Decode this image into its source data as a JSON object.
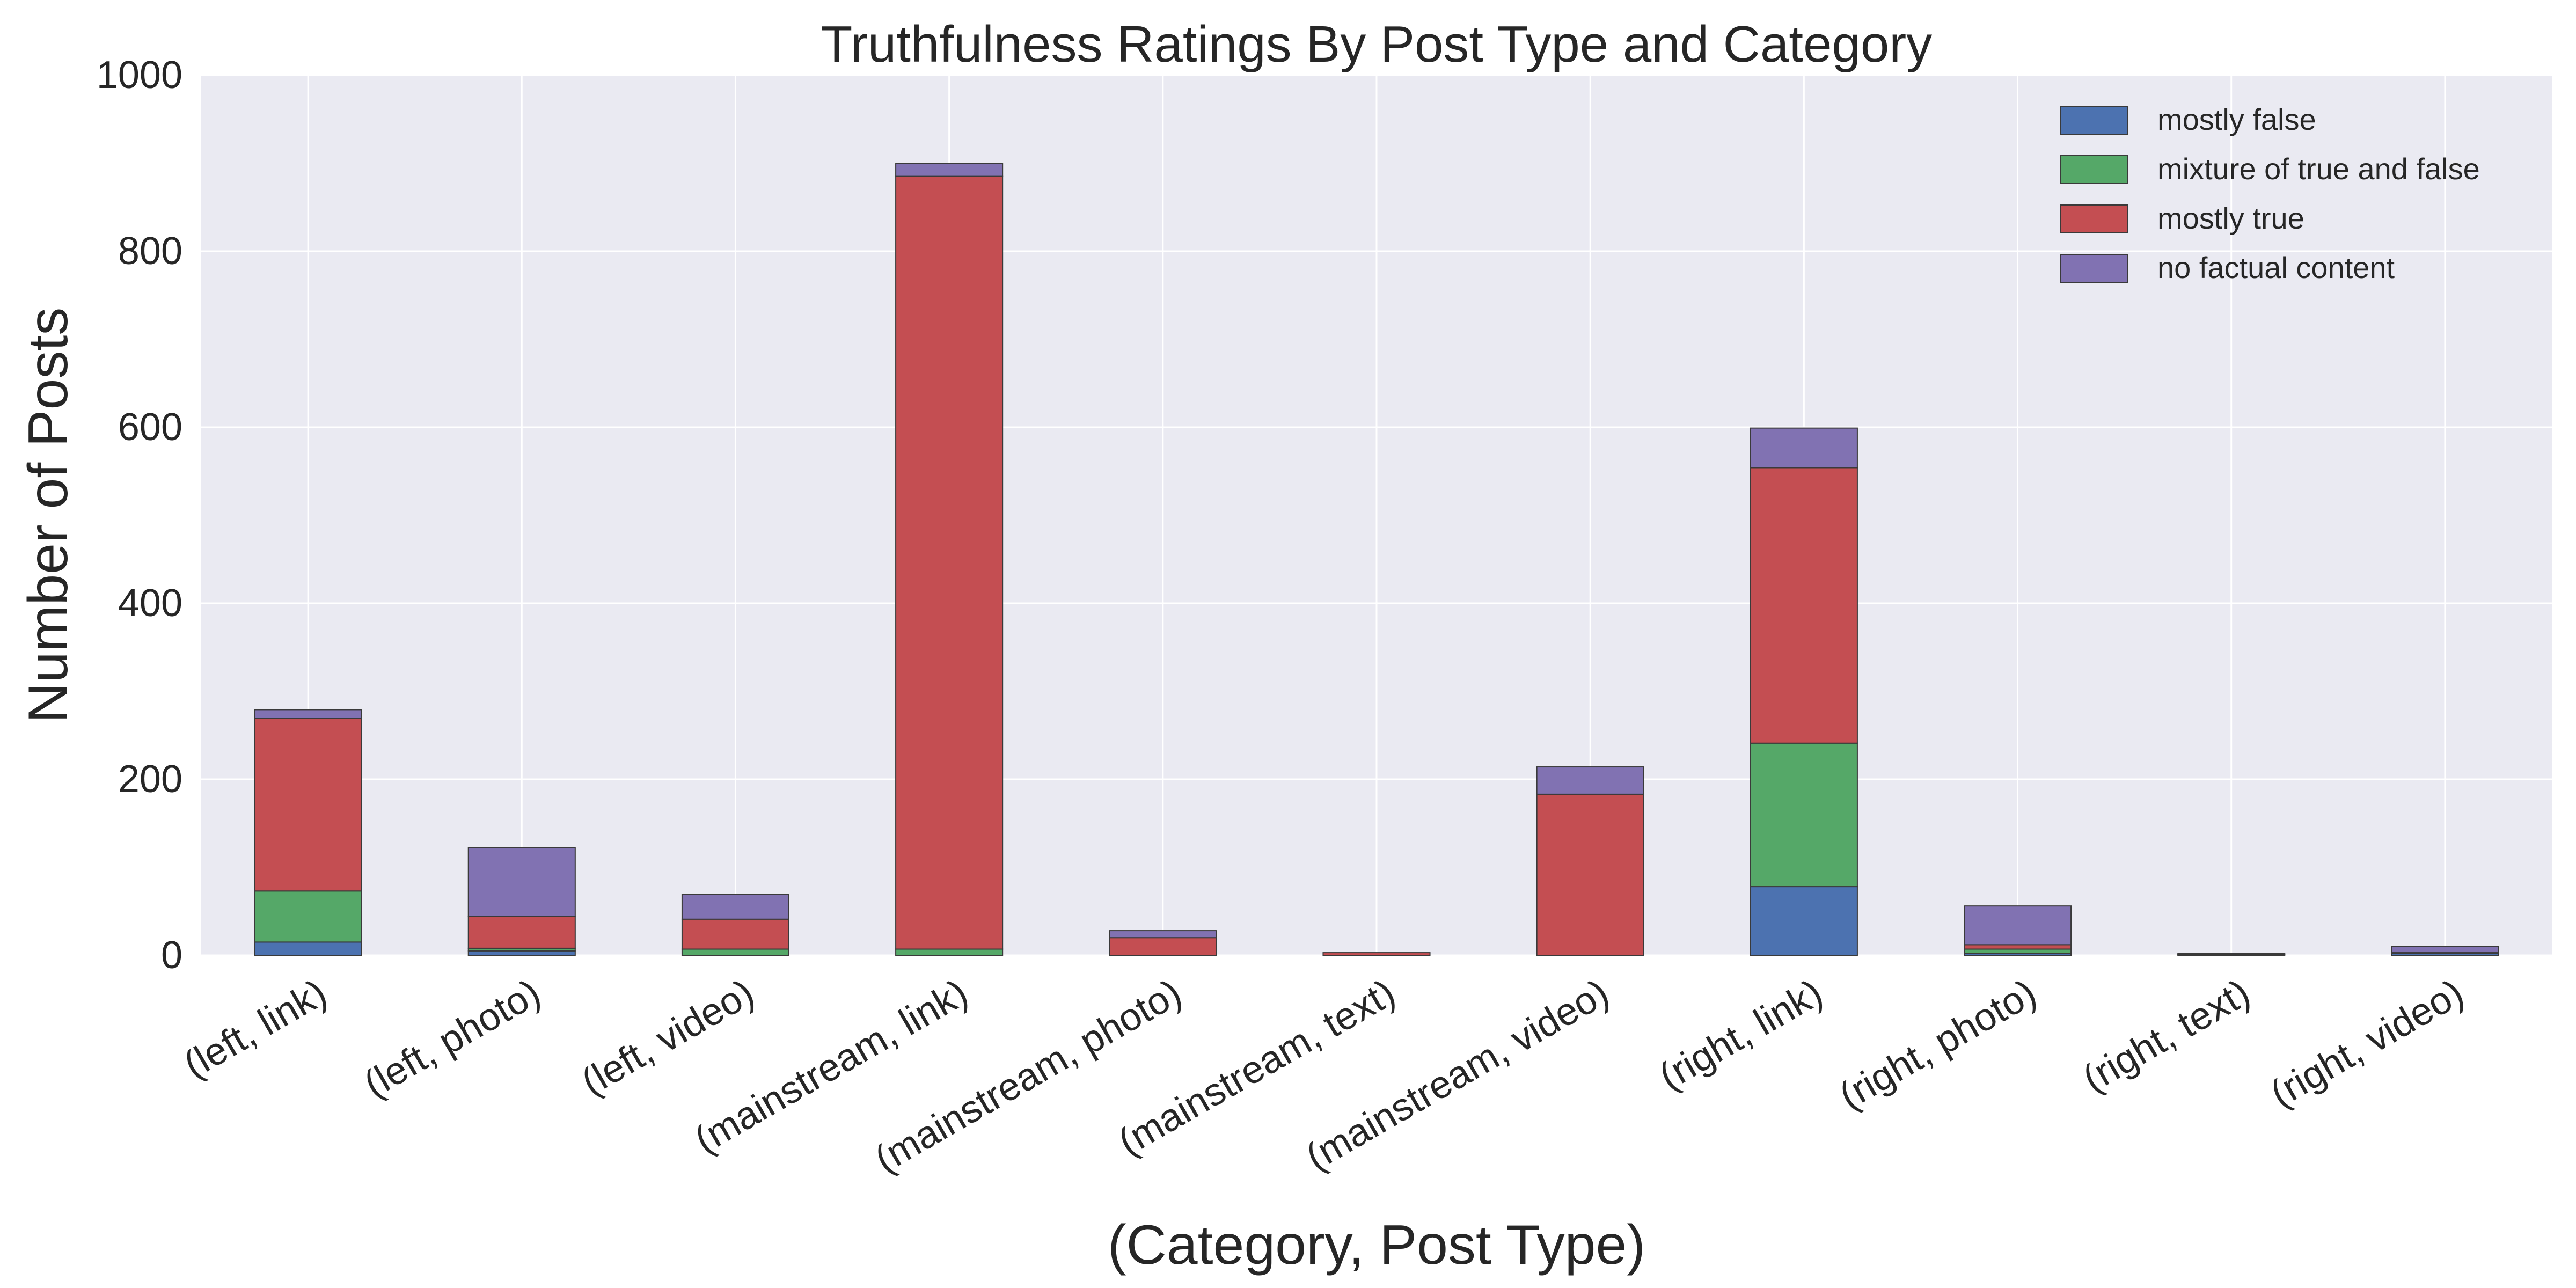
{
  "chart_data": {
    "type": "bar",
    "stacked": true,
    "title": "Truthfulness Ratings By Post Type and Category",
    "xlabel": "(Category, Post Type)",
    "ylabel": "Number of Posts",
    "ylim": [
      0,
      1000
    ],
    "yticks": [
      0,
      200,
      400,
      600,
      800,
      1000
    ],
    "grid": true,
    "legend_position": "top-right",
    "categories": [
      "(left, link)",
      "(left, photo)",
      "(left, video)",
      "(mainstream, link)",
      "(mainstream, photo)",
      "(mainstream, text)",
      "(mainstream, video)",
      "(right, link)",
      "(right, photo)",
      "(right, text)",
      "(right, video)"
    ],
    "series": [
      {
        "name": "mostly false",
        "color": "#4c72b0",
        "values": [
          15,
          5,
          0,
          0,
          0,
          0,
          0,
          78,
          2,
          0,
          2
        ]
      },
      {
        "name": "mixture of true and false",
        "color": "#55a868",
        "values": [
          58,
          3,
          7,
          7,
          0,
          0,
          0,
          163,
          5,
          1,
          1
        ]
      },
      {
        "name": "mostly true",
        "color": "#c44e52",
        "values": [
          196,
          36,
          34,
          878,
          20,
          3,
          183,
          313,
          5,
          0,
          0
        ]
      },
      {
        "name": "no factual content",
        "color": "#8172b2",
        "values": [
          10,
          78,
          28,
          15,
          8,
          0,
          31,
          45,
          44,
          1,
          7
        ]
      }
    ],
    "colors": {
      "plot_background": "#eaeaf2",
      "grid": "#ffffff",
      "text": "#262626",
      "bar_edge": "#3a3a3a"
    }
  }
}
